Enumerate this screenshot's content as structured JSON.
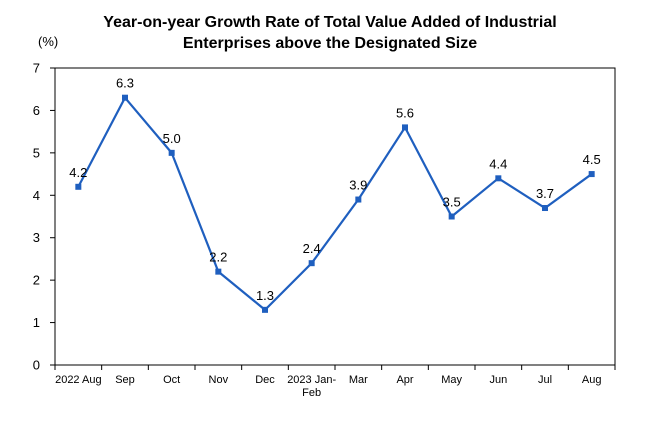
{
  "chart_data": {
    "type": "line",
    "title_line1": "Year-on-year Growth Rate of Total Value Added of Industrial",
    "title_line2": "Enterprises above the Designated Size",
    "ylabel": "(%)",
    "xlabel": "",
    "ylim": [
      0,
      7
    ],
    "yticks": [
      0,
      1,
      2,
      3,
      4,
      5,
      6,
      7
    ],
    "categories": [
      [
        "2022 Aug"
      ],
      [
        "Sep"
      ],
      [
        "Oct"
      ],
      [
        "Nov"
      ],
      [
        "Dec"
      ],
      [
        "2023 Jan-",
        "Feb"
      ],
      [
        "Mar"
      ],
      [
        "Apr"
      ],
      [
        "May"
      ],
      [
        "Jun"
      ],
      [
        "Jul"
      ],
      [
        "Aug"
      ]
    ],
    "series": [
      {
        "values": [
          4.2,
          6.3,
          5.0,
          2.2,
          1.3,
          2.4,
          3.9,
          5.6,
          3.5,
          4.4,
          3.7,
          4.5
        ]
      }
    ],
    "data_labels": [
      "4.2",
      "6.3",
      "5.0",
      "2.2",
      "1.3",
      "2.4",
      "3.9",
      "5.6",
      "3.5",
      "4.4",
      "3.7",
      "4.5"
    ],
    "line_color": "#1f5fbf",
    "grid": false,
    "legend": "none"
  }
}
